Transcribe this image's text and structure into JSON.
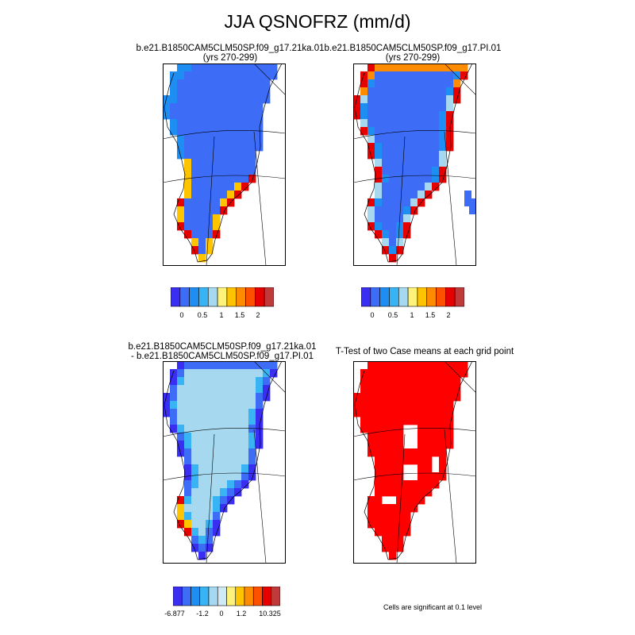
{
  "title": "JJA QSNOFRZ (mm/d)",
  "palette_seq": [
    "#3a2ef2",
    "#3d6cf6",
    "#1f8ef2",
    "#38b4f5",
    "#a6d9ef",
    "#fff27a",
    "#ffc400",
    "#ff8c00",
    "#ff5000",
    "#e60000",
    "#c03a3a"
  ],
  "palette_div": [
    "#3a2ef2",
    "#3d6cf6",
    "#1f8ef2",
    "#38b4f5",
    "#a6d9ef",
    "#cfe9f5",
    "#fff27a",
    "#ffc400",
    "#ff8c00",
    "#ff5000",
    "#e60000",
    "#c03a3a"
  ],
  "chart_data": [
    {
      "type": "heatmap",
      "title_line1": "b.e21.B1850CAM5CLM50SP.f09_g17.21ka.01",
      "title_line2": "(yrs 270-299)",
      "region": "Greenland",
      "pattern": "interior near 0, increasing to ~2 mm/d along southern/western margin",
      "interior_value": 0,
      "margin_max": 2,
      "colorbar_ticks": [
        "0",
        "0.5",
        "1",
        "1.5",
        "2"
      ]
    },
    {
      "type": "heatmap",
      "title_line1": "b.e21.B1850CAM5CLM50SP.f09_g17.PI.01",
      "title_line2": "(yrs 270-299)",
      "region": "Greenland",
      "pattern": "interior near 0, ring of ~2 mm/d along the entire coast",
      "interior_value": 0,
      "margin_max": 2,
      "colorbar_ticks": [
        "0",
        "0.5",
        "1",
        "1.5",
        "2"
      ]
    },
    {
      "type": "heatmap",
      "title_line1": "b.e21.B1850CAM5CLM50SP.f09_g17.21ka.01",
      "title_line2": "- b.e21.B1850CAM5CLM50SP.f09_g17.PI.01",
      "region": "Greenland",
      "pattern": "interior ~0 (light blue), negative ring along margin, positive patches in far southwest",
      "colorbar_ticks": [
        "-6.877",
        "-1.2",
        "0",
        "1.2",
        "10.325"
      ],
      "min": -6.877,
      "max": 10.325
    },
    {
      "type": "heatmap",
      "title_line1": "T-Test of two Case means at each grid point",
      "region": "Greenland",
      "pattern": "nearly all cells significant (red) except a few interior patches",
      "note": "Cells are significant at 0.1 level"
    }
  ]
}
